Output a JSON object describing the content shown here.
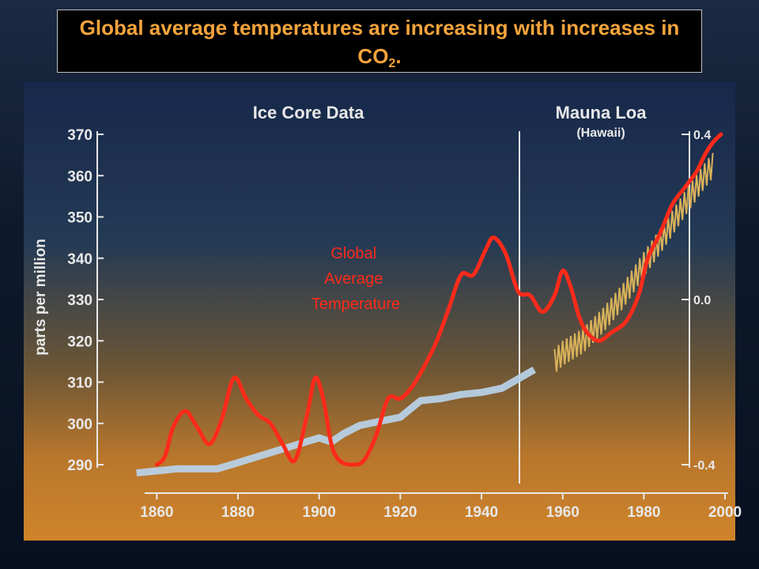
{
  "slide": {
    "title_main": "Global average temperatures are increasing with increases in CO",
    "title_sub": "2",
    "title_end": "."
  },
  "colors": {
    "title": "#f4a43c",
    "temperature_line": "#ff2a1a",
    "ice_core_line": "#b9d3ea",
    "mauna_loa_line": "#d9b25a",
    "axis": "#e8e8e8"
  },
  "chart_data": {
    "type": "line",
    "sections": [
      "Ice Core Data",
      "Mauna Loa",
      "(Hawaii)"
    ],
    "xlim": [
      1850,
      2000
    ],
    "ylim_left": [
      285,
      373
    ],
    "ylim_right": [
      -0.4,
      0.4
    ],
    "x_ticks": [
      1860,
      1880,
      1900,
      1920,
      1940,
      1960,
      1980,
      2000
    ],
    "y_ticks_left": [
      290,
      300,
      310,
      320,
      330,
      340,
      350,
      360,
      370
    ],
    "y_ticks_right": [
      "-0.4",
      "0.0",
      "0.4"
    ],
    "ylabel": "parts per million",
    "temperature_label": [
      "Global",
      "Average",
      "Temperature"
    ],
    "series": [
      {
        "name": "Ice Core Data",
        "x": [
          1855,
          1860,
          1865,
          1870,
          1875,
          1880,
          1885,
          1890,
          1895,
          1900,
          1903,
          1906,
          1910,
          1915,
          1920,
          1925,
          1930,
          1935,
          1940,
          1945,
          1953
        ],
        "y": [
          288,
          288.5,
          289,
          289,
          289,
          290.5,
          292,
          293.5,
          295,
          296.5,
          295.5,
          297.5,
          299.5,
          300.5,
          301.5,
          305.5,
          306,
          307,
          307.5,
          308.5,
          313
        ]
      },
      {
        "name": "Mauna Loa",
        "x": [
          1958,
          1960,
          1965,
          1970,
          1975,
          1980,
          1985,
          1990,
          1995,
          1997
        ],
        "y": [
          315,
          317,
          320,
          325,
          331,
          338.5,
          345.5,
          353,
          360,
          362.5
        ]
      },
      {
        "name": "Global Average Temperature",
        "x": [
          1860,
          1862,
          1864,
          1867,
          1870,
          1873,
          1876,
          1879,
          1882,
          1885,
          1888,
          1891,
          1894,
          1897,
          1899,
          1901,
          1903,
          1905,
          1908,
          1911,
          1914,
          1917,
          1920,
          1923,
          1926,
          1929,
          1932,
          1935,
          1938,
          1941,
          1943,
          1946,
          1949,
          1952,
          1955,
          1958,
          1960,
          1962,
          1964,
          1966,
          1969,
          1972,
          1975,
          1977,
          1979,
          1981,
          1984,
          1987,
          1990,
          1993,
          1995,
          1997,
          1999
        ],
        "y": [
          -0.4,
          -0.38,
          -0.31,
          -0.27,
          -0.31,
          -0.35,
          -0.29,
          -0.19,
          -0.24,
          -0.28,
          -0.3,
          -0.35,
          -0.39,
          -0.28,
          -0.19,
          -0.24,
          -0.35,
          -0.39,
          -0.4,
          -0.39,
          -0.33,
          -0.24,
          -0.24,
          -0.21,
          -0.16,
          -0.1,
          -0.02,
          0.06,
          0.06,
          0.12,
          0.15,
          0.11,
          0.02,
          0.01,
          -0.03,
          0.01,
          0.07,
          0.03,
          -0.04,
          -0.08,
          -0.1,
          -0.08,
          -0.06,
          -0.03,
          0.02,
          0.1,
          0.16,
          0.23,
          0.27,
          0.31,
          0.35,
          0.38,
          0.4
        ]
      }
    ]
  }
}
